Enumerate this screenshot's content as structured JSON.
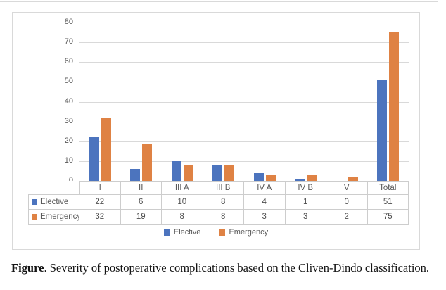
{
  "chart_data": {
    "type": "bar",
    "title": "",
    "categories": [
      "I",
      "II",
      "III A",
      "III B",
      "IV A",
      "IV B",
      "V",
      "Total"
    ],
    "series": [
      {
        "name": "Elective",
        "color": "#4c74be",
        "values": [
          22,
          6,
          10,
          8,
          4,
          1,
          0,
          51
        ]
      },
      {
        "name": "Emergency",
        "color": "#df8244",
        "values": [
          32,
          19,
          8,
          8,
          3,
          3,
          2,
          75
        ]
      }
    ],
    "ylim": [
      0,
      80
    ],
    "yticks": [
      0,
      10,
      20,
      30,
      40,
      50,
      60,
      70,
      80
    ],
    "grid": true,
    "gridline_color": "#d9d9d9",
    "legend_position": "bottom",
    "data_table_shown": true,
    "xlabel": "",
    "ylabel": ""
  },
  "caption": {
    "label": "Figure",
    "text": ". Severity of postoperative complications based on the Cliven-Dindo classification."
  }
}
